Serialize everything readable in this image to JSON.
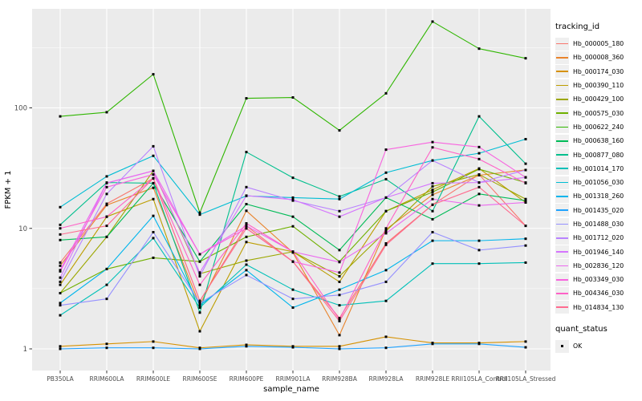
{
  "figure": {
    "x_axis_title": "sample_name",
    "y_axis_title": "FPKM + 1",
    "colors": {
      "panel_bg": "#EBEBEB",
      "grid_major": "#FFFFFF",
      "grid_minor": "#F7F7F7",
      "tick_text": "#4D4D4D",
      "axis_title": "#000000",
      "point": "#000000",
      "legend_key_bg": "#EFEFEF"
    }
  },
  "legend": {
    "color_title": "tracking_id",
    "shape_title": "quant_status",
    "shape_items": [
      {
        "label": "OK",
        "marker": "filled-square"
      }
    ]
  },
  "chart_data": {
    "type": "line",
    "x_categories": [
      "PB350LA",
      "RRIM600LA",
      "RRIM600LE",
      "RRIM600SE",
      "RRIM600PE",
      "RRIM901LA",
      "RRIM928BA",
      "RRIM928LA",
      "RRIM928LE",
      "RRII105LA_Control",
      "RRII105LA_Stressed"
    ],
    "xlabel": "sample_name",
    "ylabel": "FPKM + 1",
    "y_scale": "log10",
    "y_ticks": [
      1,
      10,
      100
    ],
    "y_minor_ticks": [
      3.162,
      31.62,
      316.2
    ],
    "ylim": [
      0.72,
      640
    ],
    "grid": true,
    "legend_position": "right",
    "marker": "filled-square",
    "series": [
      {
        "name": "Hb_000005_180",
        "color": "#F8766D",
        "values": [
          5.2,
          16,
          26,
          2.5,
          10.5,
          5.3,
          1.8,
          7.5,
          15.7,
          28,
          10.5
        ]
      },
      {
        "name": "Hb_000008_360",
        "color": "#E9842C",
        "values": [
          4.9,
          15.6,
          21.7,
          2.3,
          14,
          6.3,
          1.3,
          9.8,
          19,
          27.6,
          30.5
        ]
      },
      {
        "name": "Hb_000174_030",
        "color": "#D69100",
        "values": [
          1.05,
          1.1,
          1.15,
          1.02,
          1.08,
          1.05,
          1.05,
          1.26,
          1.12,
          1.12,
          1.15
        ]
      },
      {
        "name": "Hb_000390_110",
        "color": "#BC9D00",
        "values": [
          3.4,
          12.5,
          17.5,
          1.4,
          7.7,
          6.4,
          3.6,
          13.9,
          20.9,
          31.4,
          16.4
        ]
      },
      {
        "name": "Hb_000429_100",
        "color": "#9CA700",
        "values": [
          2.9,
          8.5,
          30,
          4.2,
          5.4,
          6.4,
          4.0,
          9.5,
          22.3,
          28,
          17.5
        ]
      },
      {
        "name": "Hb_000575_030",
        "color": "#6FB000",
        "values": [
          2.9,
          4.6,
          5.7,
          5.3,
          8.5,
          10.4,
          5.3,
          13.9,
          20,
          31,
          24
        ]
      },
      {
        "name": "Hb_000622_240",
        "color": "#2FB600",
        "values": [
          85,
          92,
          190,
          13.5,
          120,
          122,
          65,
          132,
          520,
          310,
          258
        ]
      },
      {
        "name": "Hb_000638_160",
        "color": "#00BB57",
        "values": [
          8.0,
          8.5,
          23.7,
          5.3,
          15.9,
          12.5,
          6.6,
          18,
          11.9,
          19.3,
          17
        ]
      },
      {
        "name": "Hb_000877_080",
        "color": "#00BF8D",
        "values": [
          10.7,
          24,
          23.7,
          2.0,
          43,
          26.3,
          18.4,
          25.6,
          13.9,
          85,
          34.4
        ]
      },
      {
        "name": "Hb_001014_170",
        "color": "#00C0B8",
        "values": [
          1.9,
          3.4,
          8.3,
          2.2,
          5.0,
          3.1,
          2.3,
          2.5,
          5.1,
          5.1,
          5.2
        ]
      },
      {
        "name": "Hb_001056_030",
        "color": "#00BDD4",
        "values": [
          15,
          27,
          40,
          13,
          18.6,
          18,
          17.5,
          29,
          36.6,
          42,
          55
        ]
      },
      {
        "name": "Hb_001318_260",
        "color": "#00B5EC",
        "values": [
          2.4,
          4.6,
          12.7,
          2.3,
          4.5,
          2.2,
          3.1,
          4.5,
          7.9,
          7.9,
          8.2
        ]
      },
      {
        "name": "Hb_001435_020",
        "color": "#1FA2FF",
        "values": [
          1.0,
          1.02,
          1.02,
          1.0,
          1.05,
          1.03,
          1.0,
          1.02,
          1.1,
          1.1,
          1.03
        ]
      },
      {
        "name": "Hb_001488_030",
        "color": "#9590FF",
        "values": [
          2.3,
          2.6,
          9.3,
          2.4,
          4.1,
          2.6,
          2.8,
          3.6,
          9.3,
          6.6,
          7.2
        ]
      },
      {
        "name": "Hb_001712_020",
        "color": "#B983FF",
        "values": [
          3.6,
          19.3,
          48,
          4.0,
          22,
          17,
          13.9,
          18,
          36.6,
          24,
          30.5
        ]
      },
      {
        "name": "Hb_001946_140",
        "color": "#D575FE",
        "values": [
          3.9,
          23.8,
          30,
          4.3,
          18.7,
          17.3,
          12.5,
          18,
          23.7,
          24,
          26.5
        ]
      },
      {
        "name": "Hb_002836_120",
        "color": "#EB69EF",
        "values": [
          4.5,
          23.8,
          30,
          6.1,
          10.5,
          6.4,
          5.25,
          9.1,
          17.5,
          15.5,
          16.4
        ]
      },
      {
        "name": "Hb_003349_030",
        "color": "#F863DF",
        "values": [
          4.4,
          22,
          28,
          6.1,
          10,
          5.3,
          4.3,
          45,
          52,
          47.3,
          26.5
        ]
      },
      {
        "name": "Hb_004346_030",
        "color": "#FF61C7",
        "values": [
          10,
          12.5,
          26,
          3.4,
          11,
          6.4,
          1.75,
          10,
          47,
          37.6,
          23.7
        ]
      },
      {
        "name": "Hb_014834_130",
        "color": "#FF6C90",
        "values": [
          8.9,
          10.5,
          26,
          2.5,
          10,
          5.3,
          1.7,
          7.3,
          15.7,
          22,
          10.5
        ]
      }
    ]
  }
}
